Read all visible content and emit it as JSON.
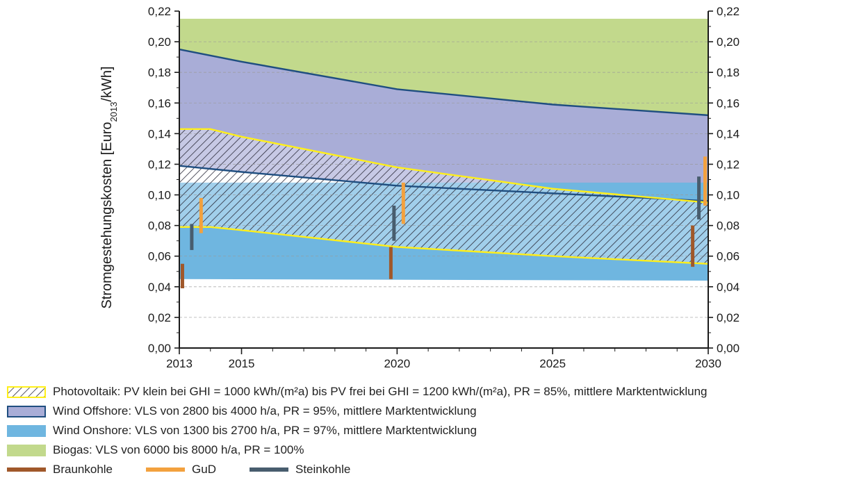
{
  "chart_data": {
    "type": "area",
    "xlabel": "",
    "ylabel_main": "Stromgestehungskosten [Euro",
    "ylabel_sub": "2013",
    "ylabel_tail": "/kWh]",
    "xlim": [
      2013,
      2030
    ],
    "ylim": [
      0,
      0.22
    ],
    "x_ticks": [
      2013,
      2015,
      2020,
      2025,
      2030
    ],
    "y_ticks": [
      "0,00",
      "0,02",
      "0,04",
      "0,06",
      "0,08",
      "0,10",
      "0,12",
      "0,14",
      "0,16",
      "0,18",
      "0,20",
      "0,22"
    ],
    "grid": "horizontal dashed",
    "bands": [
      {
        "name": "Biogas",
        "fill": "#c2d98c",
        "x": [
          2013,
          2030
        ],
        "upper": [
          0.215,
          0.215
        ],
        "lower": [
          0.135,
          0.135
        ]
      },
      {
        "name": "Wind Offshore",
        "fill": "#a9add7",
        "line": "#1f4e80",
        "x": [
          2013,
          2015,
          2020,
          2025,
          2030
        ],
        "upper": [
          0.195,
          0.187,
          0.169,
          0.159,
          0.152
        ],
        "lower": [
          0.119,
          0.115,
          0.106,
          0.101,
          0.096
        ]
      },
      {
        "name": "Wind Onshore",
        "fill": "#6fb6e0",
        "x": [
          2013,
          2030
        ],
        "upper": [
          0.108,
          0.108
        ],
        "lower": [
          0.045,
          0.044
        ]
      },
      {
        "name": "Photovoltaik",
        "line": "#ffef1a",
        "hatch": true,
        "x": [
          2013,
          2014,
          2015,
          2020,
          2025,
          2030
        ],
        "upper": [
          0.143,
          0.143,
          0.138,
          0.118,
          0.104,
          0.095
        ],
        "lower": [
          0.079,
          0.079,
          0.077,
          0.066,
          0.06,
          0.055
        ]
      }
    ],
    "ranges": [
      {
        "name": "Braunkohle",
        "color": "#a0582a",
        "x": 2013.1,
        "low": 0.039,
        "high": 0.055
      },
      {
        "name": "Braunkohle",
        "color": "#a0582a",
        "x": 2019.8,
        "low": 0.045,
        "high": 0.066
      },
      {
        "name": "Braunkohle",
        "color": "#a0582a",
        "x": 2029.5,
        "low": 0.053,
        "high": 0.08
      },
      {
        "name": "GuD",
        "color": "#f3a13e",
        "x": 2013.7,
        "low": 0.075,
        "high": 0.098
      },
      {
        "name": "GuD",
        "color": "#f3a13e",
        "x": 2020.2,
        "low": 0.081,
        "high": 0.108
      },
      {
        "name": "GuD",
        "color": "#f3a13e",
        "x": 2029.9,
        "low": 0.093,
        "high": 0.125
      },
      {
        "name": "Steinkohle",
        "color": "#485d6e",
        "x": 2013.4,
        "low": 0.064,
        "high": 0.081
      },
      {
        "name": "Steinkohle",
        "color": "#485d6e",
        "x": 2019.9,
        "low": 0.07,
        "high": 0.093
      },
      {
        "name": "Steinkohle",
        "color": "#485d6e",
        "x": 2029.7,
        "low": 0.084,
        "high": 0.112
      }
    ]
  },
  "legend": {
    "pv": "Photovoltaik: PV klein bei GHI = 1000 kWh/(m²a) bis PV frei bei GHI = 1200 kWh/(m²a), PR = 85%, mittlere Marktentwicklung",
    "offshore": "Wind Offshore: VLS von 2800 bis 4000 h/a, PR = 95%, mittlere Marktentwicklung",
    "onshore": "Wind Onshore: VLS von 1300 bis 2700 h/a, PR = 97%, mittlere Marktentwicklung",
    "biogas": "Biogas: VLS von 6000 bis 8000 h/a, PR = 100%",
    "braunkohle": "Braunkohle",
    "gud": "GuD",
    "steinkohle": "Steinkohle"
  },
  "colors": {
    "biogas": "#c2d98c",
    "offshore_fill": "#a9add7",
    "offshore_line": "#1f4e80",
    "onshore": "#6fb6e0",
    "pv_line": "#ffef1a",
    "braunkohle": "#a0582a",
    "gud": "#f3a13e",
    "steinkohle": "#485d6e"
  }
}
